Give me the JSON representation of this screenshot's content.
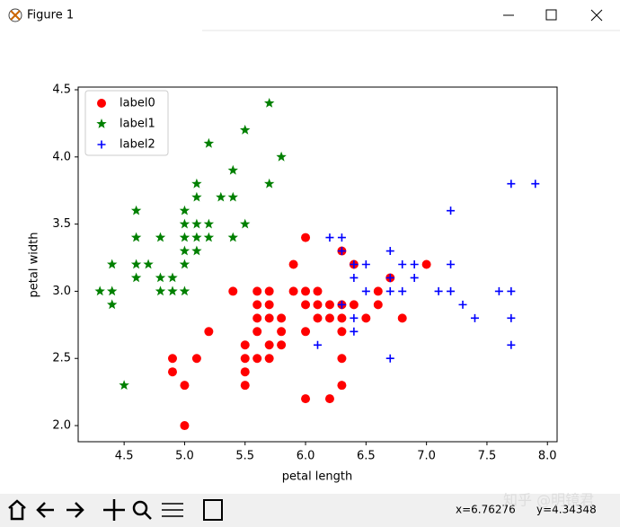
{
  "window": {
    "title": "Figure 1"
  },
  "chart_data": {
    "type": "scatter",
    "xlabel": "petal length",
    "ylabel": "petal width",
    "xlim": [
      4.12,
      8.08
    ],
    "ylim": [
      1.88,
      4.52
    ],
    "xticks": [
      {
        "value": 4.5,
        "label": "4.5"
      },
      {
        "value": 5,
        "label": "5.0"
      },
      {
        "value": 5.5,
        "label": "5.5"
      },
      {
        "value": 6,
        "label": "6.0"
      },
      {
        "value": 6.5,
        "label": "6.5"
      },
      {
        "value": 7,
        "label": "7.0"
      },
      {
        "value": 7.5,
        "label": "7.5"
      },
      {
        "value": 8,
        "label": "8.0"
      }
    ],
    "yticks": [
      {
        "value": 2,
        "label": "2.0"
      },
      {
        "value": 2.5,
        "label": "2.5"
      },
      {
        "value": 3,
        "label": "3.0"
      },
      {
        "value": 3.5,
        "label": "3.5"
      },
      {
        "value": 4,
        "label": "4.0"
      },
      {
        "value": 4.5,
        "label": "4.5"
      }
    ],
    "legend": "upper left",
    "series": [
      {
        "name": "label0",
        "color": "#ff0000",
        "marker": "o",
        "x": [
          4.9,
          4.9,
          5.0,
          5.0,
          5.1,
          5.2,
          5.4,
          5.5,
          5.5,
          5.5,
          5.5,
          5.6,
          5.6,
          5.6,
          5.6,
          5.6,
          5.7,
          5.7,
          5.7,
          5.7,
          5.7,
          5.8,
          5.8,
          5.8,
          5.9,
          5.9,
          6.0,
          6.0,
          6.0,
          6.0,
          6.0,
          6.1,
          6.1,
          6.1,
          6.2,
          6.2,
          6.2,
          6.3,
          6.3,
          6.3,
          6.3,
          6.3,
          6.3,
          6.4,
          6.4,
          6.5,
          6.6,
          6.6,
          6.7,
          6.8,
          7.0
        ],
        "y": [
          2.5,
          2.4,
          2.3,
          2.0,
          2.5,
          2.7,
          3.0,
          2.6,
          2.5,
          2.4,
          2.3,
          3.0,
          2.9,
          2.8,
          2.7,
          2.5,
          3.0,
          2.9,
          2.8,
          2.6,
          2.5,
          2.8,
          2.7,
          2.6,
          3.2,
          3.0,
          3.4,
          3.0,
          2.9,
          2.7,
          2.2,
          3.0,
          2.9,
          2.8,
          2.9,
          2.8,
          2.2,
          3.3,
          2.9,
          2.8,
          2.7,
          2.5,
          2.3,
          3.2,
          2.9,
          2.8,
          3.0,
          2.9,
          3.1,
          2.8,
          3.2
        ]
      },
      {
        "name": "label1",
        "color": "#008000",
        "marker": "*",
        "x": [
          4.3,
          4.4,
          4.4,
          4.4,
          4.5,
          4.6,
          4.6,
          4.6,
          4.6,
          4.7,
          4.8,
          4.8,
          4.8,
          4.9,
          4.9,
          5.0,
          5.0,
          5.0,
          5.0,
          5.0,
          5.0,
          5.1,
          5.1,
          5.1,
          5.1,
          5.1,
          5.2,
          5.2,
          5.2,
          5.3,
          5.4,
          5.4,
          5.4,
          5.5,
          5.5,
          5.7,
          5.7,
          5.8
        ],
        "y": [
          3.0,
          3.2,
          3.0,
          2.9,
          2.3,
          3.6,
          3.4,
          3.2,
          3.1,
          3.2,
          3.4,
          3.1,
          3.0,
          3.1,
          3.0,
          3.6,
          3.5,
          3.4,
          3.3,
          3.2,
          3.0,
          3.8,
          3.7,
          3.5,
          3.4,
          3.3,
          4.1,
          3.5,
          3.4,
          3.7,
          3.9,
          3.7,
          3.4,
          4.2,
          3.5,
          4.4,
          3.8,
          4.0
        ]
      },
      {
        "name": "label2",
        "color": "#0000ff",
        "marker": "+",
        "x": [
          6.1,
          6.2,
          6.3,
          6.3,
          6.3,
          6.4,
          6.4,
          6.4,
          6.4,
          6.5,
          6.5,
          6.7,
          6.7,
          6.7,
          6.7,
          6.8,
          6.8,
          6.9,
          6.9,
          7.1,
          7.2,
          7.2,
          7.2,
          7.3,
          7.4,
          7.6,
          7.7,
          7.7,
          7.7,
          7.7,
          7.9
        ],
        "y": [
          2.6,
          3.4,
          3.4,
          3.3,
          2.9,
          3.2,
          3.1,
          2.8,
          2.7,
          3.2,
          3.0,
          3.3,
          3.1,
          3.0,
          2.5,
          3.2,
          3.0,
          3.2,
          3.1,
          3.0,
          3.6,
          3.2,
          3.0,
          2.9,
          2.8,
          3.0,
          3.8,
          3.0,
          2.8,
          2.6,
          3.8
        ]
      }
    ]
  },
  "status": {
    "x": "x=6.76276",
    "y": "y=4.34348"
  },
  "watermark": "知乎 @明镜君"
}
